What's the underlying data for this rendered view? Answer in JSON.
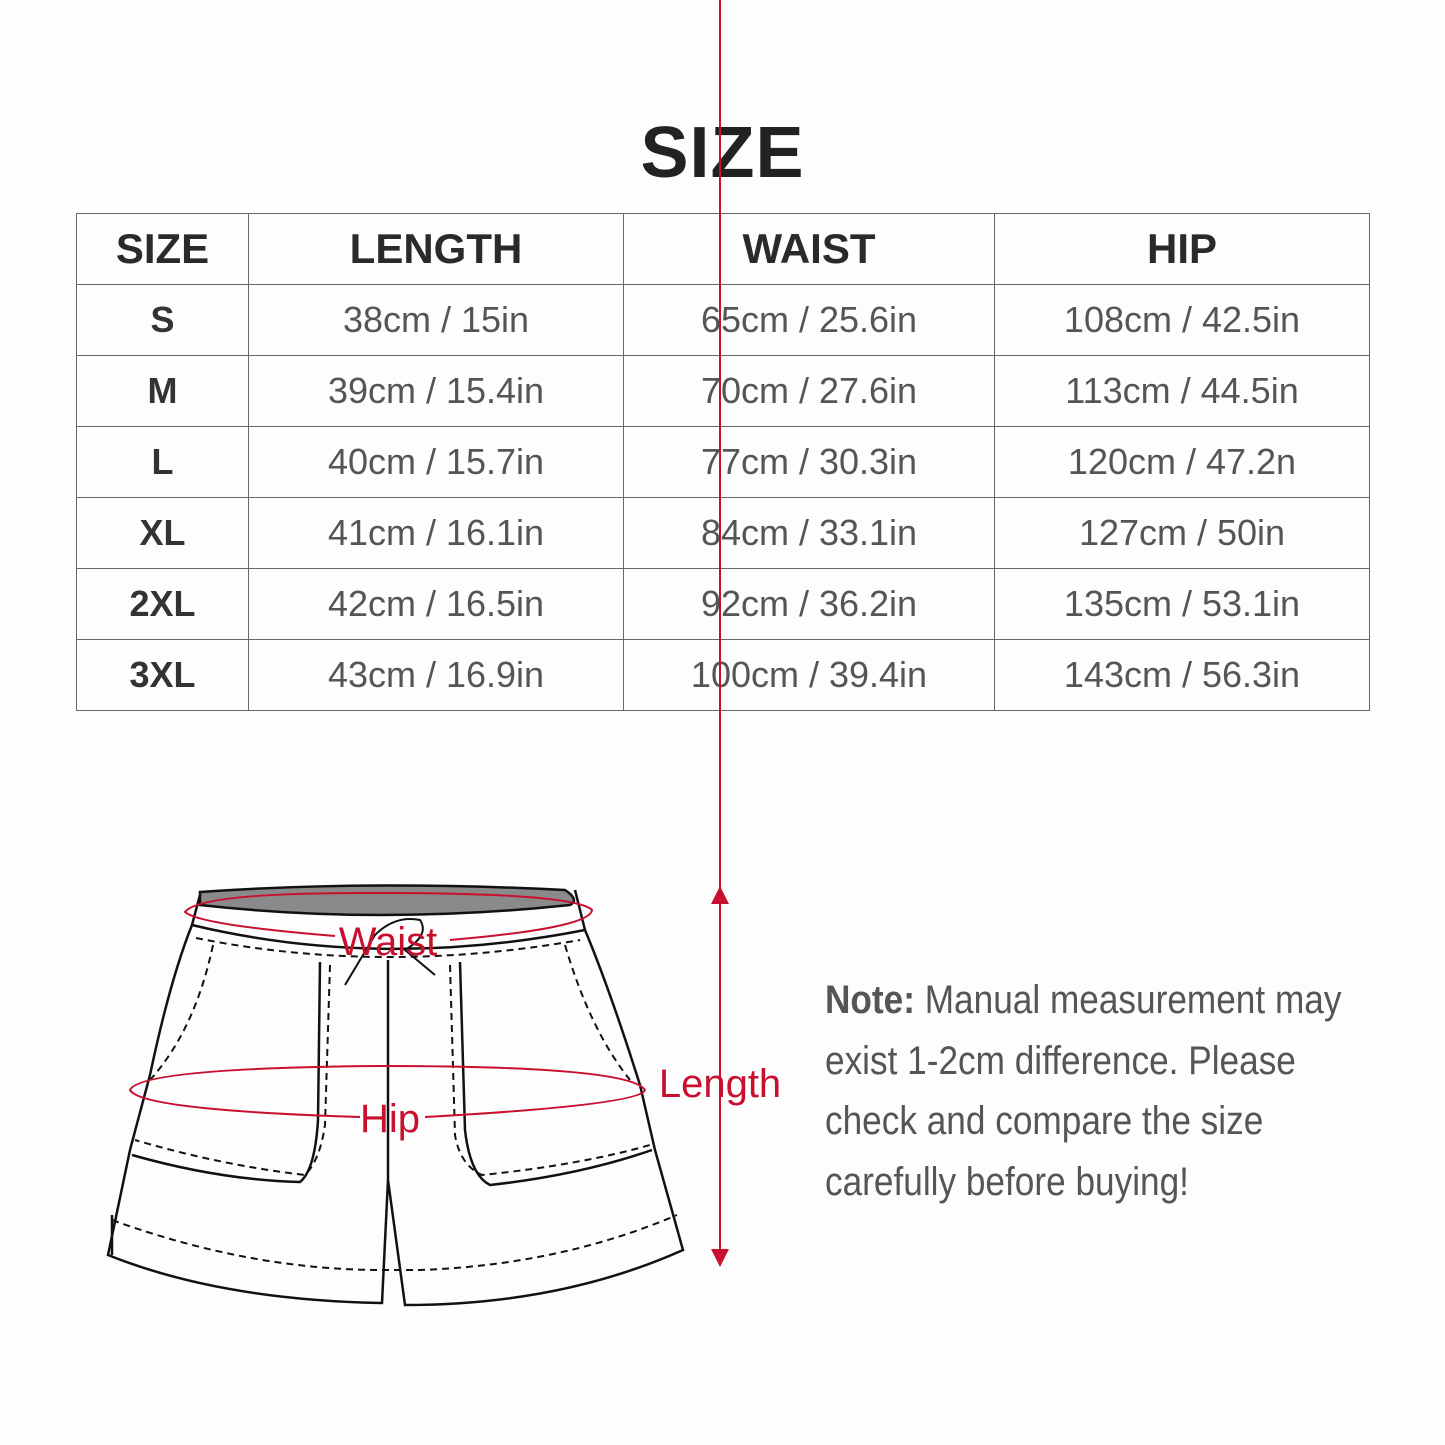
{
  "title": "SIZE",
  "table": {
    "headers": [
      "SIZE",
      "LENGTH",
      "WAIST",
      "HIP"
    ],
    "rows": [
      [
        "S",
        "38cm / 15in",
        "65cm / 25.6in",
        "108cm / 42.5in"
      ],
      [
        "M",
        "39cm / 15.4in",
        "70cm / 27.6in",
        "113cm / 44.5in"
      ],
      [
        "L",
        "40cm / 15.7in",
        "77cm / 30.3in",
        "120cm / 47.2n"
      ],
      [
        "XL",
        "41cm / 16.1in",
        "84cm / 33.1in",
        "127cm / 50in"
      ],
      [
        "2XL",
        "42cm / 16.5in",
        "92cm / 36.2in",
        "135cm / 53.1in"
      ],
      [
        "3XL",
        "43cm / 16.9in",
        "100cm / 39.4in",
        "143cm / 56.3in"
      ]
    ]
  },
  "diagram": {
    "waist_label": "Waist",
    "hip_label": "Hip",
    "length_label": "Length",
    "accent_color": "#c8102e"
  },
  "note": {
    "label": "Note:",
    "text": " Manual measurement may exist 1-2cm difference. Please check and compare the size carefully before buying!"
  }
}
